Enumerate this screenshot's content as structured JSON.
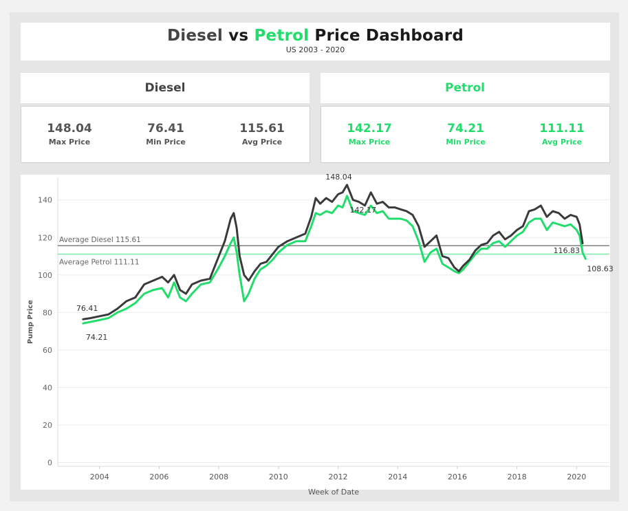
{
  "header": {
    "title_diesel": "Diesel",
    "title_vs": "vs",
    "title_petrol": "Petrol",
    "title_rest": "Price Dashboard",
    "subtitle": "US 2003 - 2020"
  },
  "diesel": {
    "label": "Diesel",
    "max": "148.04",
    "max_label": "Max Price",
    "min": "76.41",
    "min_label": "Min Price",
    "avg": "115.61",
    "avg_label": "Avg Price"
  },
  "petrol": {
    "label": "Petrol",
    "max": "142.17",
    "max_label": "Max Price",
    "min": "74.21",
    "min_label": "Min Price",
    "avg": "111.11",
    "avg_label": "Avg Price"
  },
  "colors": {
    "diesel": "#3a3a3a",
    "petrol": "#22dd6b",
    "diesel_avg_line": "#808080",
    "petrol_avg_line": "#7ee8a8"
  },
  "chart_data": {
    "type": "line",
    "title": "",
    "xlabel": "Week of Date",
    "ylabel": "Pump Price",
    "xlim": [
      2002.6,
      2021.1
    ],
    "ylim": [
      -2,
      152
    ],
    "x_ticks": [
      2004,
      2006,
      2008,
      2010,
      2012,
      2014,
      2016,
      2018,
      2020
    ],
    "y_ticks": [
      0,
      20,
      40,
      60,
      80,
      100,
      120,
      140
    ],
    "grid": "horizontal",
    "reference_lines": [
      {
        "name": "Average Diesel",
        "label": "Average Diesel 115.61",
        "value": 115.61,
        "series": "Diesel"
      },
      {
        "name": "Average Petrol",
        "label": "Average Petrol 111.11",
        "value": 111.11,
        "series": "Petrol"
      }
    ],
    "annotations": [
      {
        "text": "76.41",
        "x": 2003.45,
        "y": 76.41,
        "series": "Diesel",
        "placement": "above-left"
      },
      {
        "text": "74.21",
        "x": 2003.45,
        "y": 74.21,
        "series": "Petrol",
        "placement": "below"
      },
      {
        "text": "148.04",
        "x": 2012.3,
        "y": 148.04,
        "series": "Diesel",
        "placement": "above"
      },
      {
        "text": "142.17",
        "x": 2012.3,
        "y": 142.17,
        "series": "Petrol",
        "placement": "below"
      },
      {
        "text": "116.83",
        "x": 2020.2,
        "y": 116.83,
        "series": "Diesel",
        "placement": "below-left"
      },
      {
        "text": "108.63",
        "x": 2020.3,
        "y": 108.63,
        "series": "Petrol",
        "placement": "below-right"
      }
    ],
    "series": [
      {
        "name": "Diesel",
        "x": [
          2003.45,
          2003.7,
          2004.0,
          2004.3,
          2004.6,
          2004.9,
          2005.2,
          2005.5,
          2005.8,
          2006.1,
          2006.3,
          2006.5,
          2006.7,
          2006.9,
          2007.1,
          2007.4,
          2007.7,
          2008.0,
          2008.2,
          2008.4,
          2008.5,
          2008.6,
          2008.7,
          2008.85,
          2009.0,
          2009.2,
          2009.4,
          2009.6,
          2009.8,
          2010.0,
          2010.3,
          2010.6,
          2010.9,
          2011.1,
          2011.25,
          2011.4,
          2011.6,
          2011.8,
          2012.0,
          2012.15,
          2012.3,
          2012.5,
          2012.7,
          2012.9,
          2013.1,
          2013.3,
          2013.5,
          2013.7,
          2013.9,
          2014.1,
          2014.3,
          2014.5,
          2014.7,
          2014.9,
          2015.1,
          2015.3,
          2015.5,
          2015.7,
          2015.9,
          2016.05,
          2016.2,
          2016.4,
          2016.6,
          2016.8,
          2017.0,
          2017.2,
          2017.4,
          2017.6,
          2017.8,
          2018.0,
          2018.2,
          2018.4,
          2018.6,
          2018.8,
          2019.0,
          2019.2,
          2019.4,
          2019.6,
          2019.8,
          2020.0,
          2020.1,
          2020.2
        ],
        "values": [
          76.41,
          77,
          78,
          79,
          82,
          86,
          88,
          95,
          97,
          99,
          96,
          100,
          92,
          90,
          95,
          97,
          98,
          110,
          118,
          130,
          133,
          125,
          110,
          100,
          97,
          102,
          106,
          107,
          111,
          115,
          118,
          120,
          122,
          131,
          141,
          138,
          141,
          139,
          143,
          144,
          148.04,
          140,
          139,
          137,
          144,
          138,
          139,
          136,
          136,
          135,
          134,
          132,
          126,
          115,
          118,
          121,
          110,
          109,
          104,
          102,
          105,
          108,
          113,
          116,
          117,
          121,
          123,
          119,
          121,
          124,
          126,
          134,
          135,
          137,
          131,
          134,
          133,
          130,
          132,
          131,
          127,
          116.83
        ]
      },
      {
        "name": "Petrol",
        "x": [
          2003.45,
          2003.7,
          2004.0,
          2004.3,
          2004.6,
          2004.9,
          2005.2,
          2005.5,
          2005.8,
          2006.1,
          2006.3,
          2006.5,
          2006.7,
          2006.9,
          2007.1,
          2007.4,
          2007.7,
          2008.0,
          2008.2,
          2008.4,
          2008.5,
          2008.6,
          2008.7,
          2008.85,
          2009.0,
          2009.2,
          2009.4,
          2009.6,
          2009.8,
          2010.0,
          2010.3,
          2010.6,
          2010.9,
          2011.1,
          2011.25,
          2011.4,
          2011.6,
          2011.8,
          2012.0,
          2012.15,
          2012.3,
          2012.5,
          2012.7,
          2012.9,
          2013.1,
          2013.3,
          2013.5,
          2013.7,
          2013.9,
          2014.1,
          2014.3,
          2014.5,
          2014.7,
          2014.9,
          2015.1,
          2015.3,
          2015.5,
          2015.7,
          2015.9,
          2016.05,
          2016.2,
          2016.4,
          2016.6,
          2016.8,
          2017.0,
          2017.2,
          2017.4,
          2017.6,
          2017.8,
          2018.0,
          2018.2,
          2018.4,
          2018.6,
          2018.8,
          2019.0,
          2019.2,
          2019.4,
          2019.6,
          2019.8,
          2020.0,
          2020.1,
          2020.2,
          2020.3
        ],
        "values": [
          74.21,
          75,
          76,
          77,
          80,
          82,
          85,
          90,
          92,
          93,
          88,
          96,
          88,
          86,
          90,
          95,
          96,
          104,
          110,
          117,
          120,
          112,
          100,
          86,
          90,
          98,
          103,
          105,
          108,
          112,
          116,
          118,
          118,
          126,
          133,
          132,
          134,
          133,
          137,
          136,
          142.17,
          134,
          133,
          132,
          137,
          133,
          134,
          130,
          130,
          130,
          129,
          126,
          118,
          107,
          112,
          114,
          106,
          104,
          102,
          101,
          103,
          107,
          111,
          114,
          114,
          117,
          118,
          115,
          118,
          121,
          123,
          128,
          130,
          130,
          124,
          128,
          127,
          126,
          127,
          124,
          121,
          112,
          108.63
        ]
      }
    ]
  }
}
